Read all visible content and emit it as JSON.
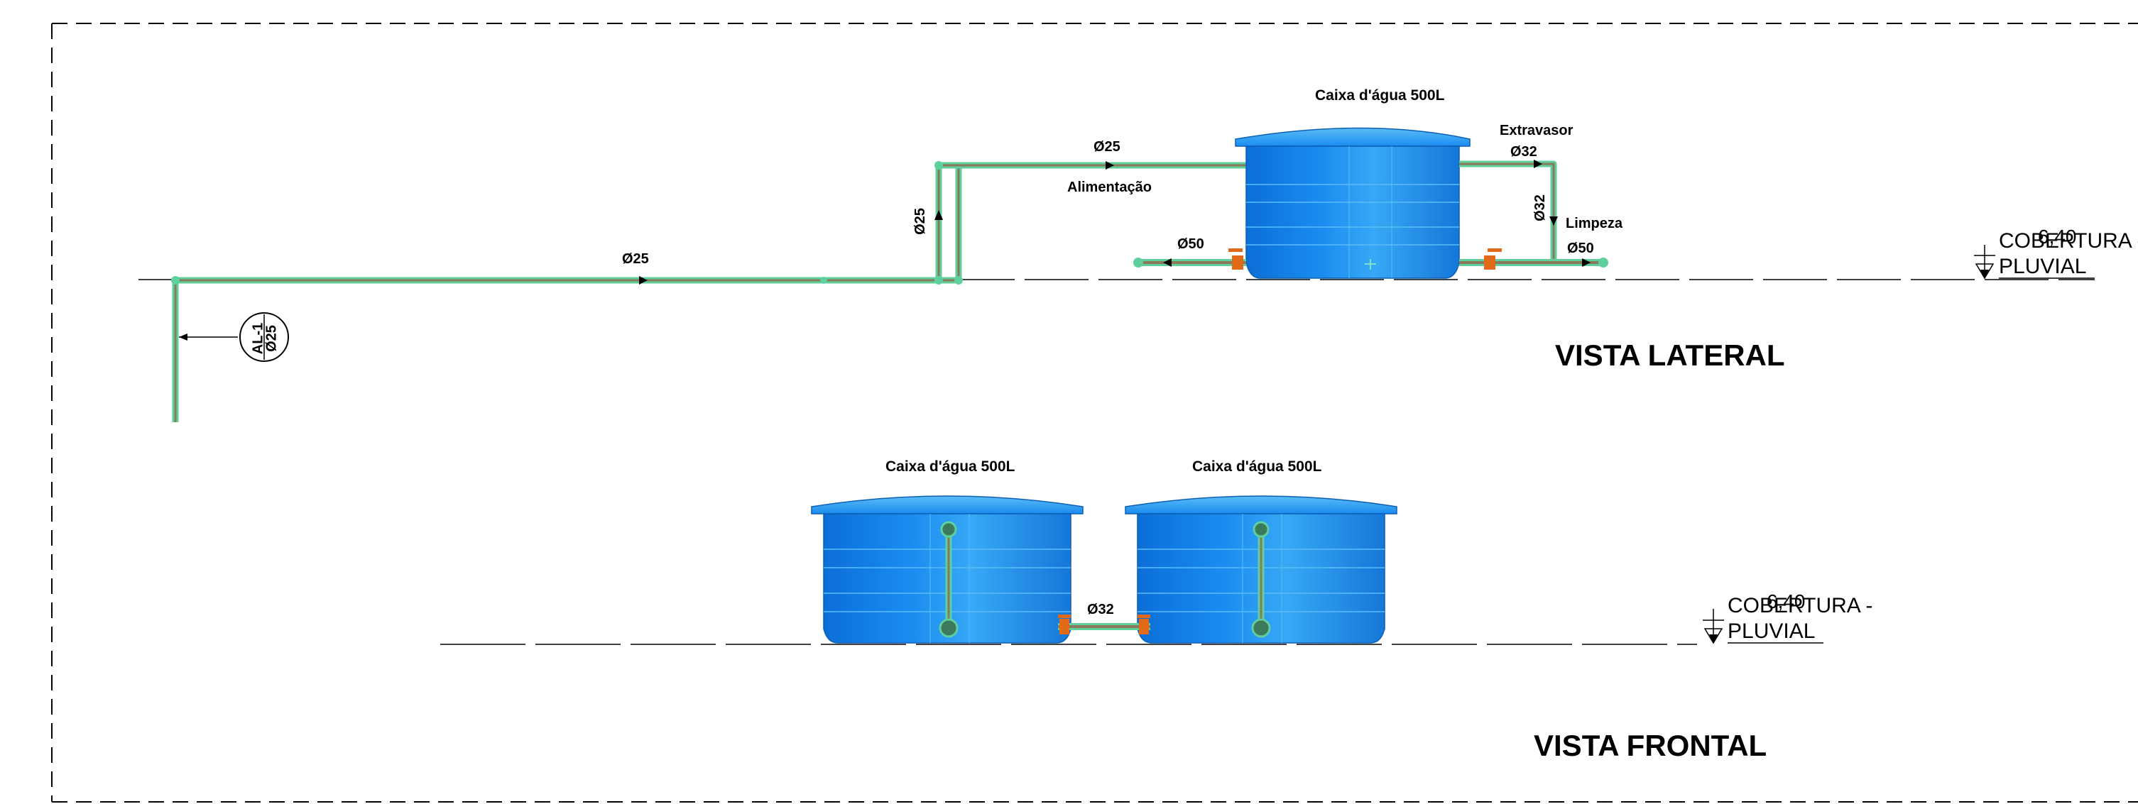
{
  "colors": {
    "tank_dark": "#0b6fd6",
    "tank_mid": "#1a8cf0",
    "tank_light": "#37a8f5",
    "pipe_green": "#5fcf9d",
    "pipe_core": "#8a7a5a",
    "valve_orange": "#e06a18",
    "line": "#000000"
  },
  "side_view": {
    "tank_label": "Caixa d'água 500L",
    "overflow_label": "Extravasor",
    "supply_label": "Alimentação",
    "cleaning_label": "Limpeza",
    "dia_supply_top": "Ø25",
    "dia_supply_main": "Ø25",
    "dia_riser": "Ø25",
    "dia_overflow": "Ø32",
    "dia_overflow_down": "Ø32",
    "dia_drain_left": "Ø50",
    "dia_drain_right": "Ø50",
    "tag_top": "AL-1",
    "tag_bottom": "Ø25",
    "level_value": "6,40",
    "level_line1": "COBERTURA -",
    "level_line2": "PLUVIAL",
    "title": "VISTA LATERAL"
  },
  "front_view": {
    "tank_left_label": "Caixa d'água 500L",
    "tank_right_label": "Caixa d'água 500L",
    "dia_link": "Ø32",
    "level_value": "6,40",
    "level_line1": "COBERTURA -",
    "level_line2": "PLUVIAL",
    "title": "VISTA FRONTAL"
  }
}
